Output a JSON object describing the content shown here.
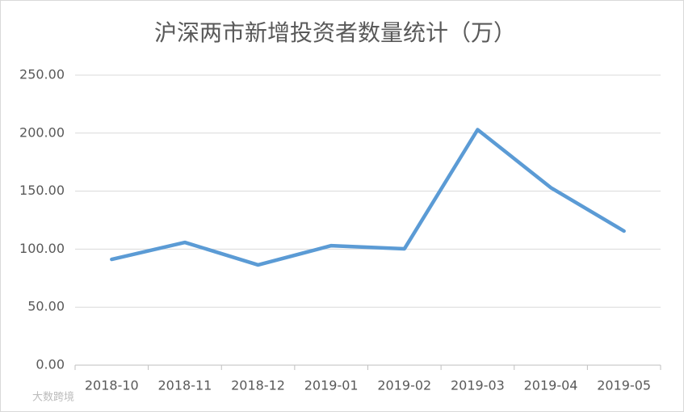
{
  "chart_data": {
    "type": "line",
    "title": "沪深两市新增投资者数量统计（万）",
    "categories": [
      "2018-10",
      "2018-11",
      "2018-12",
      "2019-01",
      "2019-02",
      "2019-03",
      "2019-04",
      "2019-05"
    ],
    "series": [
      {
        "name": "新增投资者",
        "color": "#5b9bd5",
        "values": [
          91.2,
          105.8,
          86.4,
          103.0,
          100.3,
          203.0,
          153.0,
          115.6
        ]
      }
    ],
    "ylim": [
      0,
      250
    ],
    "yticks": [
      {
        "value": 0,
        "label": "0.00"
      },
      {
        "value": 50,
        "label": "50.00"
      },
      {
        "value": 100,
        "label": "100.00"
      },
      {
        "value": 150,
        "label": "150.00"
      },
      {
        "value": 200,
        "label": "200.00"
      },
      {
        "value": 250,
        "label": "250.00"
      }
    ],
    "grid": true,
    "watermark": "大数跨境"
  }
}
